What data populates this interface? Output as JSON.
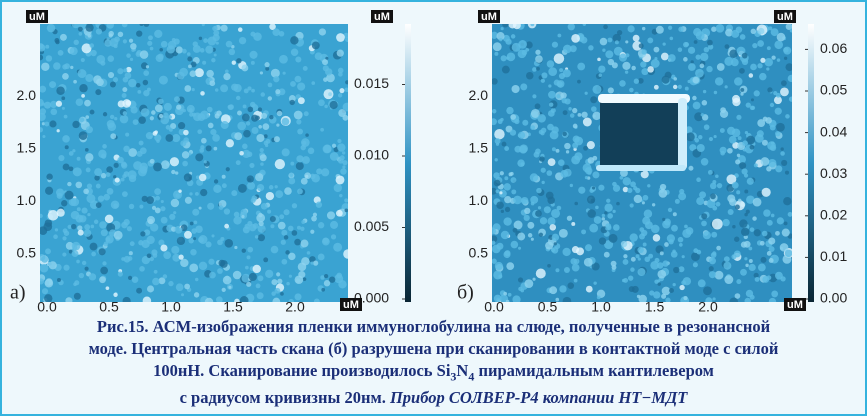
{
  "panels": [
    {
      "label": "а)",
      "unit_top": "uM",
      "unit_corner": "uM",
      "unit_colorbar": "uM",
      "x_ticks": [
        "0.0",
        "0.5",
        "1.0",
        "1.5",
        "2.0"
      ],
      "y_ticks": [
        "0.5",
        "1.0",
        "1.5",
        "2.0"
      ],
      "colorbar_ticks": [
        "0.000",
        "0.005",
        "0.010",
        "0.015"
      ]
    },
    {
      "label": "б)",
      "unit_top": "uM",
      "unit_corner": "uM",
      "unit_colorbar": "uM",
      "x_ticks": [
        "0.0",
        "0.5",
        "1.0",
        "1.5",
        "2.0"
      ],
      "y_ticks": [
        "0.5",
        "1.0",
        "1.5",
        "2.0"
      ],
      "colorbar_ticks": [
        "0.00",
        "0.01",
        "0.02",
        "0.03",
        "0.04",
        "0.05",
        "0.06"
      ]
    }
  ],
  "caption": {
    "lines": [
      "Рис.15. АСМ-изображения пленки иммуноглобулина на слюде, полученные в резонансной",
      "моде. Центральная часть скана (б) разрушена при сканировании в контактной моде с силой"
    ],
    "line3": [
      "100нН. Сканирование производилось ",
      "Si",
      "3",
      "N",
      "4",
      " пирамидальным кантилевером"
    ],
    "line4": [
      "с радиусом кривизны 20нм. ",
      "Прибор СОЛВЕР-Р4 компании НТ−МДТ"
    ]
  }
}
